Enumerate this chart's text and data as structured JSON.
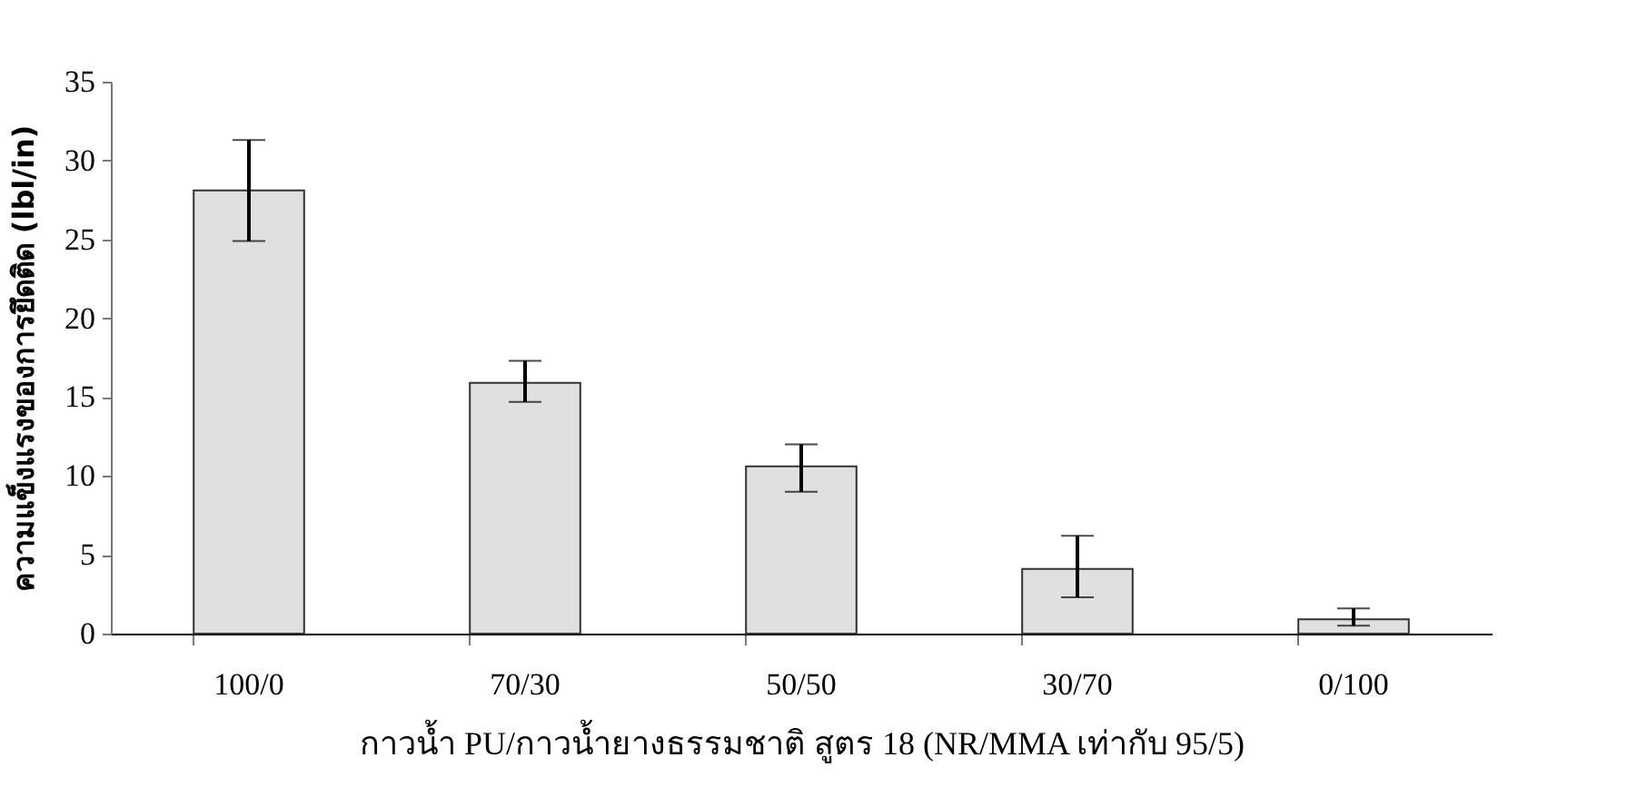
{
  "chart_data": {
    "type": "bar",
    "xlabel": "กาวน้ำ PU/กาวน้ำยางธรรมชาติ สูตร 18 (NR/MMA เท่ากับ 95/5)",
    "ylabel": "ความแข็งแรงของการยึดติด (lbl/in)",
    "categories": [
      "100/0",
      "70/30",
      "50/50",
      "30/70",
      "0/100"
    ],
    "values": [
      28.1,
      15.9,
      10.6,
      4.1,
      0.9
    ],
    "errors": [
      [
        24.9,
        31.3
      ],
      [
        14.7,
        17.3
      ],
      [
        9.0,
        12.0
      ],
      [
        2.3,
        6.2
      ],
      [
        0.5,
        1.6
      ]
    ],
    "color": "#e0e0e0",
    "ylim": [
      0,
      35
    ],
    "yticks": [
      0,
      5,
      10,
      15,
      20,
      25,
      30,
      35
    ],
    "grid": false
  }
}
